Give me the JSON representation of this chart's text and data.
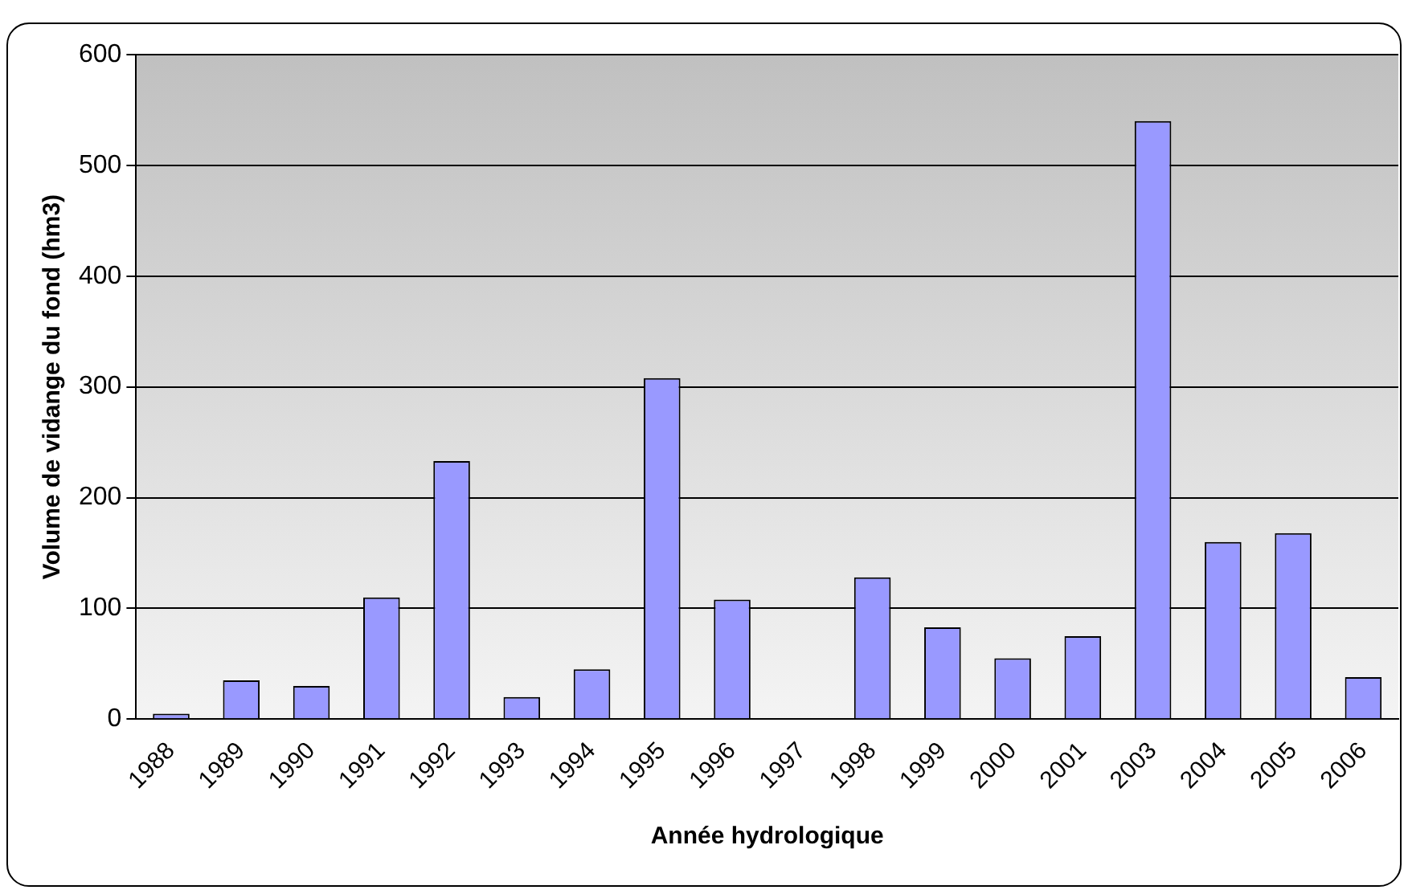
{
  "chart_data": {
    "type": "bar",
    "xlabel": "Année hydrologique",
    "ylabel": "Volume de vidange du fond (hm3)",
    "categories": [
      "1988",
      "1989",
      "1990",
      "1991",
      "1992",
      "1993",
      "1994",
      "1995",
      "1996",
      "1997",
      "1998",
      "1999",
      "2000",
      "2001",
      "2003",
      "2004",
      "2005",
      "2006"
    ],
    "values": [
      5,
      35,
      30,
      110,
      233,
      20,
      45,
      308,
      108,
      0,
      128,
      83,
      55,
      75,
      540,
      160,
      168,
      38
    ],
    "color": "#9999ff",
    "ylim": [
      0,
      600
    ],
    "yticks": [
      0,
      100,
      200,
      300,
      400,
      500,
      600
    ],
    "grid": "y",
    "legend": false
  }
}
